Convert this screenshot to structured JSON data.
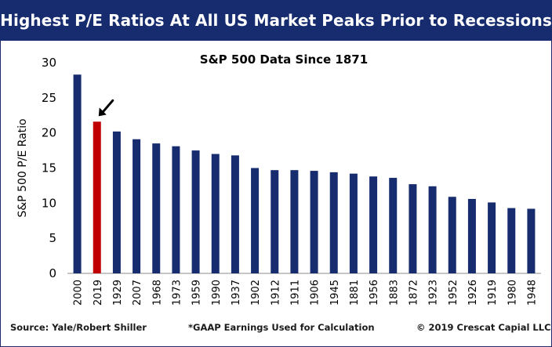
{
  "header": {
    "title": "Highest P/E Ratios At All US Market Peaks Prior to Recessions"
  },
  "footer": {
    "source": "Source: Yale/Robert Shiller",
    "note": "*GAAP Earnings Used for Calculation",
    "copyright": "© 2019 Crescat Capial LLC"
  },
  "colors": {
    "bar": "#162c6e",
    "highlight": "#c00000",
    "banner": "#162c6e",
    "text": "#000000"
  },
  "chart_data": {
    "type": "bar",
    "title": "S&P 500 Data Since 1871",
    "xlabel": "",
    "ylabel": "S&P 500 P/E Ratio",
    "ylim": [
      0,
      30
    ],
    "yticks": [
      "0",
      "5",
      "10",
      "15",
      "20",
      "25",
      "30"
    ],
    "categories": [
      "2000",
      "2019",
      "1929",
      "2007",
      "1968",
      "1973",
      "1959",
      "1990",
      "1937",
      "1902",
      "1912",
      "1911",
      "1906",
      "1945",
      "1881",
      "1956",
      "1883",
      "1872",
      "1923",
      "1952",
      "1926",
      "1919",
      "1980",
      "1948"
    ],
    "values": [
      28.3,
      21.6,
      20.2,
      19.1,
      18.5,
      18.1,
      17.5,
      17.0,
      16.8,
      15.0,
      14.7,
      14.7,
      14.6,
      14.4,
      14.2,
      13.8,
      13.6,
      12.7,
      12.4,
      10.9,
      10.6,
      10.1,
      9.3,
      9.2
    ],
    "highlight_index": 1,
    "annotation": "arrow pointing to 2019 bar",
    "grid": false
  }
}
